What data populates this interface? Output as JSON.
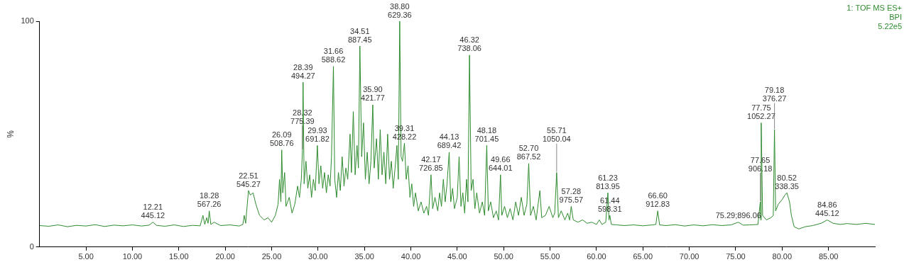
{
  "chart_data": {
    "type": "line",
    "subtitle": [
      "1: TOF MS ES+",
      "BPI",
      "5.22e5"
    ],
    "y_label": "%",
    "color": "#2e8b2e",
    "grid": false,
    "xlim": [
      0,
      90
    ],
    "xticks": [
      {
        "value": 5,
        "label": "5.00"
      },
      {
        "value": 10,
        "label": "10.00"
      },
      {
        "value": 15,
        "label": "15.00"
      },
      {
        "value": 20,
        "label": "20.00"
      },
      {
        "value": 25,
        "label": "25.00"
      },
      {
        "value": 30,
        "label": "30.00"
      },
      {
        "value": 35,
        "label": "35.00"
      },
      {
        "value": 40,
        "label": "40.00"
      },
      {
        "value": 45,
        "label": "45.00"
      },
      {
        "value": 50,
        "label": "50.00"
      },
      {
        "value": 55,
        "label": "55.00"
      },
      {
        "value": 60,
        "label": "60.00"
      },
      {
        "value": 65,
        "label": "65.00"
      },
      {
        "value": 70,
        "label": "70.00"
      },
      {
        "value": 75,
        "label": "75.00"
      },
      {
        "value": 80,
        "label": "80.00"
      },
      {
        "value": 85,
        "label": "85.00"
      }
    ],
    "ylim": [
      0,
      100
    ],
    "yticks": [
      0,
      100
    ],
    "x": [
      0,
      1,
      2,
      3,
      4,
      5,
      6,
      7,
      8,
      9,
      10,
      11,
      11.8,
      12.21,
      12.6,
      13.5,
      14.5,
      15.5,
      16.5,
      17.3,
      17.6,
      17.8,
      18.0,
      18.15,
      18.28,
      18.45,
      18.8,
      19.5,
      20.5,
      21.5,
      21.9,
      22.05,
      22.2,
      22.4,
      22.51,
      22.7,
      23.0,
      23.3,
      23.7,
      24.2,
      24.6,
      25.0,
      25.4,
      25.7,
      25.85,
      26.0,
      26.09,
      26.2,
      26.4,
      26.55,
      26.9,
      27.2,
      27.5,
      27.8,
      28.0,
      28.2,
      28.32,
      28.39,
      28.5,
      28.7,
      28.9,
      29.1,
      29.3,
      29.5,
      29.7,
      29.93,
      30.1,
      30.3,
      30.5,
      30.7,
      30.9,
      31.1,
      31.3,
      31.45,
      31.66,
      31.8,
      32.0,
      32.2,
      32.4,
      32.6,
      32.8,
      33.0,
      33.2,
      33.45,
      33.6,
      33.8,
      34.0,
      34.2,
      34.35,
      34.51,
      34.7,
      34.9,
      35.1,
      35.3,
      35.5,
      35.7,
      35.9,
      36.05,
      36.3,
      36.5,
      36.7,
      36.9,
      37.1,
      37.3,
      37.5,
      37.7,
      37.9,
      38.1,
      38.3,
      38.5,
      38.65,
      38.8,
      38.95,
      39.1,
      39.31,
      39.5,
      39.7,
      39.9,
      40.1,
      40.3,
      40.5,
      40.8,
      41.1,
      41.4,
      41.7,
      41.9,
      42.17,
      42.35,
      42.6,
      42.9,
      43.1,
      43.3,
      43.5,
      43.7,
      43.9,
      44.13,
      44.3,
      44.5,
      44.7,
      45.0,
      45.2,
      45.4,
      45.6,
      45.8,
      46.0,
      46.15,
      46.32,
      46.5,
      46.7,
      46.9,
      47.1,
      47.4,
      47.7,
      47.95,
      48.18,
      48.35,
      48.6,
      48.9,
      49.2,
      49.45,
      49.66,
      49.8,
      50.1,
      50.4,
      50.7,
      51.0,
      51.3,
      51.6,
      51.9,
      52.2,
      52.5,
      52.7,
      52.9,
      53.2,
      53.5,
      53.9,
      54.1,
      54.5,
      54.9,
      55.3,
      55.5,
      55.71,
      55.9,
      56.2,
      56.6,
      56.9,
      57.1,
      57.28,
      57.5,
      58.0,
      58.5,
      59.0,
      59.5,
      60.0,
      60.3,
      60.6,
      61.0,
      61.23,
      61.35,
      61.44,
      61.6,
      62.2,
      63.0,
      64.0,
      65.0,
      66.0,
      66.4,
      66.6,
      66.8,
      67.5,
      68.5,
      69.5,
      70.5,
      71.5,
      72.5,
      73.5,
      74.5,
      75.29,
      75.8,
      76.5,
      77.4,
      77.65,
      77.7,
      77.75,
      77.9,
      78.3,
      78.8,
      79.05,
      79.18,
      79.3,
      79.6,
      80.0,
      80.3,
      80.52,
      80.8,
      81.0,
      81.3,
      81.8,
      82.5,
      83.3,
      84.2,
      84.86,
      85.5,
      86.3,
      87.0,
      88.0,
      89.0,
      90
    ],
    "values": [
      9.5,
      9.2,
      9.8,
      9.0,
      9.6,
      9.3,
      9.9,
      9.1,
      9.7,
      9.4,
      9.8,
      9.3,
      9.7,
      11,
      9.6,
      9.2,
      9.8,
      9.1,
      9.6,
      9.4,
      14,
      10,
      13,
      10.5,
      16,
      10,
      11,
      9.5,
      9.8,
      9.3,
      10,
      14,
      10.5,
      20,
      25,
      23,
      24,
      19,
      14,
      12,
      13,
      11,
      14,
      19,
      30,
      20,
      43,
      24,
      33,
      18,
      22,
      15,
      19,
      27,
      22,
      30,
      43,
      73,
      28,
      38,
      26,
      32,
      22,
      30,
      25,
      45,
      28,
      36,
      26,
      33,
      24,
      32,
      27,
      40,
      80,
      30,
      22,
      33,
      25,
      40,
      27,
      35,
      30,
      50,
      33,
      60,
      32,
      45,
      35,
      89,
      40,
      55,
      30,
      42,
      28,
      38,
      63,
      35,
      48,
      30,
      52,
      32,
      42,
      28,
      50,
      30,
      38,
      26,
      35,
      45,
      30,
      100,
      40,
      38,
      46,
      30,
      36,
      22,
      28,
      18,
      24,
      16,
      20,
      15,
      18,
      14,
      32,
      17,
      22,
      16,
      24,
      18,
      30,
      20,
      28,
      42,
      20,
      26,
      17,
      22,
      40,
      18,
      24,
      15,
      30,
      20,
      85,
      25,
      30,
      17,
      24,
      15,
      20,
      14,
      45,
      16,
      20,
      13,
      16,
      12,
      32,
      14,
      18,
      13,
      17,
      12,
      20,
      14,
      22,
      14,
      19,
      37,
      14,
      18,
      12,
      25,
      13,
      14,
      18,
      13,
      15,
      33,
      13,
      16,
      12,
      15,
      12,
      18,
      12,
      11,
      12,
      10.5,
      11,
      10,
      12,
      10,
      11,
      24,
      12,
      14,
      10,
      9.8,
      9.5,
      9.8,
      9.4,
      9.8,
      10,
      16,
      9.8,
      9.5,
      9.9,
      9.3,
      9.8,
      9.4,
      9.9,
      9.5,
      9.8,
      11,
      9.7,
      9.8,
      10,
      20,
      12,
      55,
      14,
      12,
      13,
      14,
      52,
      16,
      19,
      21,
      23,
      24,
      20,
      14,
      9,
      8,
      9,
      9.5,
      10.5,
      12,
      10.5,
      10,
      10.4,
      10,
      10.5,
      10
    ],
    "annotations": [
      {
        "x": 12.21,
        "y": 11,
        "label": [
          "12.21",
          "445.12"
        ]
      },
      {
        "x": 18.28,
        "y": 16,
        "label": [
          "18.28",
          "567.26"
        ]
      },
      {
        "x": 22.51,
        "y": 25,
        "label": [
          "22.51",
          "545.27"
        ]
      },
      {
        "x": 26.09,
        "y": 43,
        "label": [
          "26.09",
          "508.76"
        ]
      },
      {
        "x": 28.32,
        "y": 43,
        "label": [
          "28.32",
          "775.39"
        ]
      },
      {
        "x": 28.39,
        "y": 73,
        "label": [
          "28.39",
          "494.27"
        ]
      },
      {
        "x": 29.93,
        "y": 45,
        "label": [
          "29.93",
          "691.82"
        ]
      },
      {
        "x": 31.66,
        "y": 80,
        "label": [
          "31.66",
          "588.62"
        ]
      },
      {
        "x": 34.51,
        "y": 89,
        "label": [
          "34.51",
          "887.45"
        ]
      },
      {
        "x": 35.9,
        "y": 63,
        "label": [
          "35.90",
          "421.77"
        ]
      },
      {
        "x": 38.8,
        "y": 100,
        "label": [
          "38.80",
          "629.36"
        ]
      },
      {
        "x": 39.31,
        "y": 46,
        "label": [
          "39.31",
          "428.22"
        ]
      },
      {
        "x": 42.17,
        "y": 32,
        "label": [
          "42.17",
          "726.85"
        ]
      },
      {
        "x": 44.13,
        "y": 42,
        "label": [
          "44.13",
          "689.42"
        ]
      },
      {
        "x": 46.32,
        "y": 85,
        "label": [
          "46.32",
          "738.06"
        ]
      },
      {
        "x": 48.18,
        "y": 45,
        "label": [
          "48.18",
          "701.45"
        ]
      },
      {
        "x": 49.66,
        "y": 32,
        "label": [
          "49.66",
          "644.01"
        ]
      },
      {
        "x": 52.7,
        "y": 37,
        "label": [
          "52.70",
          "867.52"
        ]
      },
      {
        "x": 55.71,
        "y": 33,
        "label": [
          "55.71",
          "1050.04"
        ]
      },
      {
        "x": 57.28,
        "y": 18,
        "label": [
          "57.28",
          "975.57"
        ]
      },
      {
        "x": 61.23,
        "y": 24,
        "label": [
          "61.23",
          "813.95"
        ]
      },
      {
        "x": 61.44,
        "y": 14,
        "label": [
          "61.44",
          "598.31"
        ]
      },
      {
        "x": 66.6,
        "y": 16,
        "label": [
          "66.60",
          "912.83"
        ]
      },
      {
        "x": 75.29,
        "y": 11,
        "label": [
          "75.29;896.06"
        ]
      },
      {
        "x": 77.65,
        "y": 20,
        "label": [
          "77.65",
          "906.18"
        ]
      },
      {
        "x": 77.75,
        "y": 55,
        "label": [
          "77.75",
          "1052.27"
        ]
      },
      {
        "x": 79.18,
        "y": 52,
        "label": [
          "79.18",
          "376.27"
        ]
      },
      {
        "x": 80.52,
        "y": 24,
        "label": [
          "80.52",
          "338.35"
        ]
      },
      {
        "x": 84.86,
        "y": 12,
        "label": [
          "84.86",
          "445.12"
        ]
      }
    ]
  }
}
